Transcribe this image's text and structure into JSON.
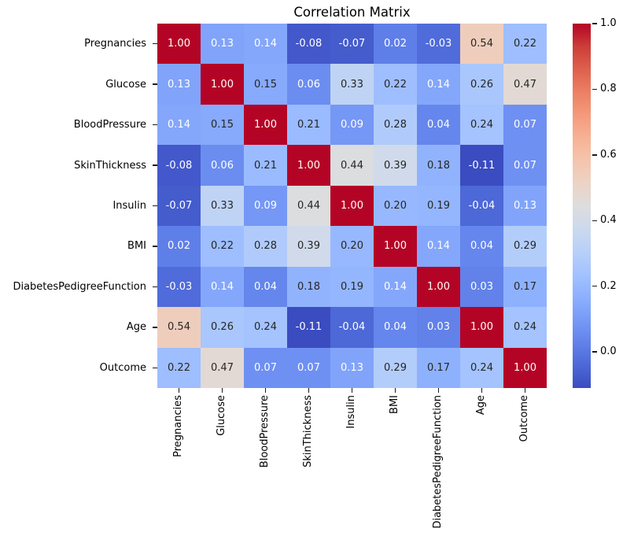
{
  "chart_data": {
    "type": "heatmap",
    "title": "Correlation Matrix",
    "categories": [
      "Pregnancies",
      "Glucose",
      "BloodPressure",
      "SkinThickness",
      "Insulin",
      "BMI",
      "DiabetesPedigreeFunction",
      "Age",
      "Outcome"
    ],
    "matrix": [
      [
        1.0,
        0.13,
        0.14,
        -0.08,
        -0.07,
        0.02,
        -0.03,
        0.54,
        0.22
      ],
      [
        0.13,
        1.0,
        0.15,
        0.06,
        0.33,
        0.22,
        0.14,
        0.26,
        0.47
      ],
      [
        0.14,
        0.15,
        1.0,
        0.21,
        0.09,
        0.28,
        0.04,
        0.24,
        0.07
      ],
      [
        -0.08,
        0.06,
        0.21,
        1.0,
        0.44,
        0.39,
        0.18,
        -0.11,
        0.07
      ],
      [
        -0.07,
        0.33,
        0.09,
        0.44,
        1.0,
        0.2,
        0.19,
        -0.04,
        0.13
      ],
      [
        0.02,
        0.22,
        0.28,
        0.39,
        0.2,
        1.0,
        0.14,
        0.04,
        0.29
      ],
      [
        -0.03,
        0.14,
        0.04,
        0.18,
        0.19,
        0.14,
        1.0,
        0.03,
        0.17
      ],
      [
        0.54,
        0.26,
        0.24,
        -0.11,
        -0.04,
        0.04,
        0.03,
        1.0,
        0.24
      ],
      [
        0.22,
        0.47,
        0.07,
        0.07,
        0.13,
        0.29,
        0.17,
        0.24,
        1.0
      ]
    ],
    "annotation_decimals": 2,
    "vmin": -0.11,
    "vmax": 1.0,
    "colormap": "coolwarm",
    "colormap_stops": [
      [
        0.0,
        "#3b4cc0"
      ],
      [
        0.0625,
        "#4d68d7"
      ],
      [
        0.125,
        "#6282ea"
      ],
      [
        0.1875,
        "#779af7"
      ],
      [
        0.25,
        "#8db0fe"
      ],
      [
        0.3125,
        "#a3c2ff"
      ],
      [
        0.375,
        "#b8d0f9"
      ],
      [
        0.4375,
        "#ccd9ee"
      ],
      [
        0.5,
        "#dddddd"
      ],
      [
        0.5625,
        "#ecd3c5"
      ],
      [
        0.625,
        "#f5c4ad"
      ],
      [
        0.6875,
        "#f7b194"
      ],
      [
        0.75,
        "#f49a7b"
      ],
      [
        0.8125,
        "#ec7f63"
      ],
      [
        0.875,
        "#de604d"
      ],
      [
        0.9375,
        "#cb3e38"
      ],
      [
        1.0,
        "#b40426"
      ]
    ],
    "annotation_text_dark": "#262626",
    "annotation_text_light": "#ffffff",
    "colorbar_ticks": [
      1.0,
      0.8,
      0.6,
      0.4,
      0.2,
      0.0
    ],
    "colorbar_position": "right",
    "x_tick_rotation": 90,
    "y_tick_rotation": 0,
    "grid": false
  }
}
